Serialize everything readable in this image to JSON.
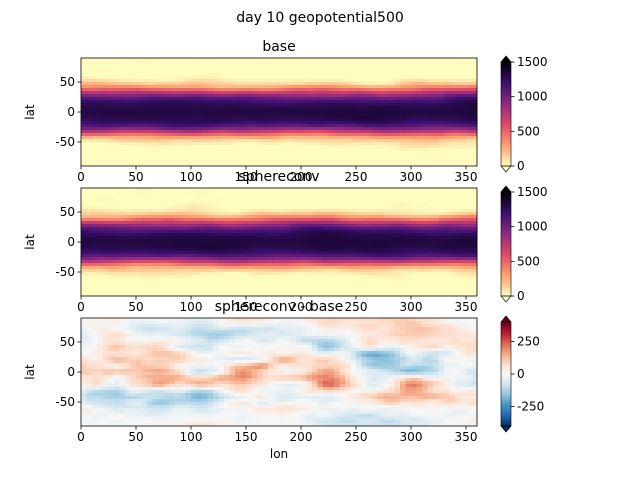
{
  "suptitle": "day 10 geopotential500",
  "colors": {
    "sequential": [
      "#fcfdbf",
      "#fe9f6d",
      "#de4968",
      "#8c2981",
      "#3b0f70",
      "#000004"
    ],
    "diverging": [
      "#053061",
      "#2166ac",
      "#4393c3",
      "#92c5de",
      "#d1e5f0",
      "#f7f7f7",
      "#fddbc7",
      "#f4a582",
      "#d6604d",
      "#b2182b",
      "#67001f"
    ]
  },
  "chart_data": [
    {
      "type": "heatmap",
      "title": "base",
      "xlabel": "",
      "ylabel": "lat",
      "xlim": [
        0,
        360
      ],
      "ylim": [
        -90,
        90
      ],
      "xticks": [
        "0",
        "50",
        "100",
        "150",
        "200",
        "250",
        "300",
        "350"
      ],
      "yticks": [
        "50",
        "0",
        "-50"
      ],
      "colormap": "magma_r",
      "vmin": 0,
      "vmax": 1500,
      "colorbar_ticks": [
        "1500",
        "1000",
        "500",
        "0"
      ],
      "colorbar_extend": "both"
    },
    {
      "type": "heatmap",
      "title": "sphereconv",
      "xlabel": "",
      "ylabel": "lat",
      "xlim": [
        0,
        360
      ],
      "ylim": [
        -90,
        90
      ],
      "xticks": [
        "0",
        "50",
        "100",
        "150",
        "200",
        "250",
        "300",
        "350"
      ],
      "yticks": [
        "50",
        "0",
        "-50"
      ],
      "colormap": "magma_r",
      "vmin": 0,
      "vmax": 1500,
      "colorbar_ticks": [
        "1500",
        "1000",
        "500",
        "0"
      ],
      "colorbar_extend": "both"
    },
    {
      "type": "heatmap",
      "title": "sphereconv - base",
      "xlabel": "lon",
      "ylabel": "lat",
      "xlim": [
        0,
        360
      ],
      "ylim": [
        -90,
        90
      ],
      "xticks": [
        "0",
        "50",
        "100",
        "150",
        "200",
        "250",
        "300",
        "350"
      ],
      "yticks": [
        "50",
        "0",
        "-50"
      ],
      "colormap": "RdBu_r",
      "vmin": -400,
      "vmax": 400,
      "colorbar_ticks": [
        "250",
        "0",
        "-250"
      ],
      "colorbar_extend": "both"
    }
  ]
}
